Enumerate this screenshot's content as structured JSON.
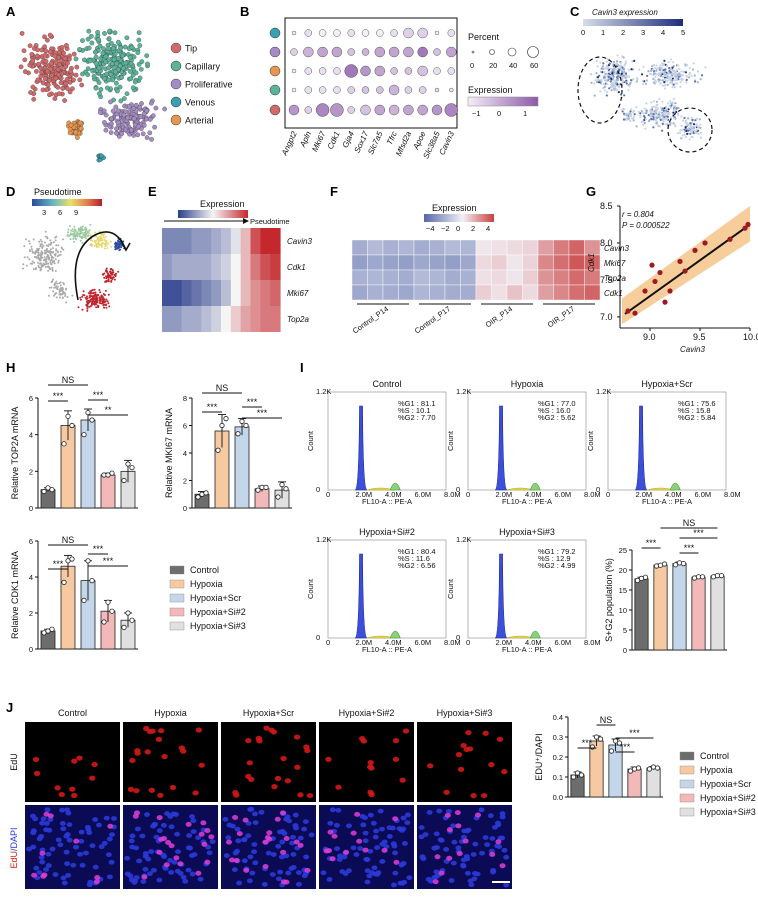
{
  "panels": {
    "A": "A",
    "B": "B",
    "C": "C",
    "D": "D",
    "E": "E",
    "F": "F",
    "G": "G",
    "H": "H",
    "I": "I",
    "J": "J"
  },
  "A": {
    "legend": [
      {
        "label": "Tip",
        "color": "#d16a6a"
      },
      {
        "label": "Capillary",
        "color": "#5bb39a"
      },
      {
        "label": "Proliferative",
        "color": "#a58cc4"
      },
      {
        "label": "Venous",
        "color": "#3a9fb0"
      },
      {
        "label": "Arterial",
        "color": "#e8964e"
      }
    ]
  },
  "B": {
    "genes": [
      "Angpt2",
      "Apln",
      "Mki67",
      "Cdk1",
      "Gja4",
      "Sox17",
      "Slc7a5",
      "Tfrc",
      "Mfsd2a",
      "Apoe",
      "Slc38a5",
      "Cavin3"
    ],
    "row_colors": [
      "#3a9fb0",
      "#a58cc4",
      "#e8964e",
      "#5bb39a",
      "#d16a6a"
    ],
    "percent_title": "Percent",
    "percent_ticks": [
      "0",
      "20",
      "40",
      "60"
    ],
    "expression_title": "Expression",
    "expression_ticks": [
      "−1",
      "0",
      "1"
    ]
  },
  "C": {
    "title": "Cavin3 expression",
    "ticks": [
      "0",
      "1",
      "2",
      "3",
      "4",
      "5"
    ]
  },
  "D": {
    "title": "Pseudotime",
    "ticks": [
      "3",
      "6",
      "9"
    ]
  },
  "E": {
    "title": "Expression",
    "axis": "Pseudotime",
    "genes": [
      "Cavin3",
      "Cdk1",
      "Mki67",
      "Top2a"
    ]
  },
  "F": {
    "title": "Expression",
    "ticks": [
      "−4",
      "−2",
      "0",
      "2",
      "4"
    ],
    "genes": [
      "Cavin3",
      "Mki67",
      "Top2a",
      "Cdk1"
    ],
    "groups": [
      "Control_P14",
      "Control_P17",
      "OIR_P14",
      "OIR_P17"
    ]
  },
  "G": {
    "r_text": "r = 0.804",
    "p_text": "P = 0.000522",
    "xlabel": "Cavin3",
    "ylabel": "Cdk1",
    "xticks": [
      "9.0",
      "9.5",
      "10.0"
    ],
    "yticks": [
      "7.0",
      "7.5",
      "8.0",
      "8.5"
    ]
  },
  "legend_groups": [
    {
      "label": "Control",
      "color": "#6d6d6d"
    },
    {
      "label": "Hypoxia",
      "color": "#f6c9a0"
    },
    {
      "label": "Hypoxia+Scr",
      "color": "#c4d6ea"
    },
    {
      "label": "Hypoxia+Si#2",
      "color": "#f3b8b8"
    },
    {
      "label": "Hypoxia+Si#3",
      "color": "#e0e0e0"
    }
  ],
  "H": {
    "top2a_ylabel": "Relative TOP2A mRNA",
    "mki67_ylabel": "Relative MKI67 mRNA",
    "cdk1_ylabel": "Relative CDK1 mRNA",
    "sig": {
      "star3": "***",
      "star2": "**",
      "ns": "NS"
    },
    "top2a_ticks": [
      "0",
      "2",
      "4",
      "6"
    ],
    "mki67_ticks": [
      "0",
      "2",
      "4",
      "6",
      "8"
    ],
    "cdk1_ticks": [
      "0",
      "2",
      "4",
      "6"
    ]
  },
  "I": {
    "plots": [
      {
        "title": "Control",
        "g1": "%G1 : 81.1",
        "s": "%S : 10.1",
        "g2": "%G2 : 7.70"
      },
      {
        "title": "Hypoxia",
        "g1": "%G1 : 77.0",
        "s": "%S : 16.0",
        "g2": "%G2 : 5.62"
      },
      {
        "title": "Hypoxia+Scr",
        "g1": "%G1 : 75.6",
        "s": "%S : 15.8",
        "g2": "%G2 : 5.84"
      },
      {
        "title": "Hypoxia+Si#2",
        "g1": "%G1 : 80.4",
        "s": "%S : 11.6",
        "g2": "%G2 : 6.56"
      },
      {
        "title": "Hypoxia+Si#3",
        "g1": "%G1 : 79.2",
        "s": "%S : 12.9",
        "g2": "%G2 : 4.99"
      }
    ],
    "xaxis": "FL10-A :: PE-A",
    "yaxis": "Count",
    "xticks": [
      "0",
      "2.0M",
      "4.0M",
      "6.0M",
      "8.0M"
    ],
    "yticks": [
      "0",
      "",
      "",
      "",
      "1.2K"
    ],
    "bar_ylabel": "S+G2 population (%)",
    "bar_ticks": [
      "0",
      "5",
      "10",
      "15",
      "20",
      "25"
    ]
  },
  "J": {
    "columns": [
      "Control",
      "Hypoxia",
      "Hypoxia+Scr",
      "Hypoxia+Si#2",
      "Hypoxia+Si#3"
    ],
    "row1": "EdU",
    "row2_a": "EdU",
    "row2_b": "/DAPI",
    "bar_ylabel": "EDU⁺/DAPI",
    "bar_ticks": [
      "0.0",
      "0.1",
      "0.2",
      "0.3",
      "0.4"
    ]
  },
  "chart_data": [
    {
      "type": "bar",
      "id": "H-TOP2A",
      "categories": [
        "Control",
        "Hypoxia",
        "Hypoxia+Scr",
        "Hypoxia+Si#2",
        "Hypoxia+Si#3"
      ],
      "values": [
        1.0,
        4.5,
        4.8,
        1.8,
        2.0
      ],
      "errors": [
        0.1,
        0.8,
        0.6,
        0.1,
        0.6
      ],
      "points": [
        [
          0.9,
          1.1,
          1.0
        ],
        [
          3.5,
          5.0,
          4.5
        ],
        [
          4.0,
          5.2,
          4.8
        ],
        [
          1.8,
          1.8,
          1.9
        ],
        [
          1.5,
          2.4,
          2.2
        ]
      ],
      "ylabel": "Relative TOP2A mRNA",
      "ylim": [
        0,
        6
      ]
    },
    {
      "type": "bar",
      "id": "H-MKI67",
      "categories": [
        "Control",
        "Hypoxia",
        "Hypoxia+Scr",
        "Hypoxia+Si#2",
        "Hypoxia+Si#3"
      ],
      "values": [
        1.0,
        5.6,
        5.9,
        1.4,
        1.3
      ],
      "errors": [
        0.2,
        1.2,
        0.6,
        0.2,
        0.6
      ],
      "points": [
        [
          0.8,
          1.0,
          1.1
        ],
        [
          4.2,
          6.0,
          6.5
        ],
        [
          5.4,
          6.3,
          6.0
        ],
        [
          1.3,
          1.5,
          1.5
        ],
        [
          0.8,
          1.7,
          1.4
        ]
      ],
      "ylabel": "Relative MKI67 mRNA",
      "ylim": [
        0,
        8
      ]
    },
    {
      "type": "bar",
      "id": "H-CDK1",
      "categories": [
        "Control",
        "Hypoxia",
        "Hypoxia+Scr",
        "Hypoxia+Si#2",
        "Hypoxia+Si#3"
      ],
      "values": [
        1.0,
        4.6,
        3.8,
        2.1,
        1.6
      ],
      "errors": [
        0.1,
        0.6,
        1.1,
        0.6,
        0.4
      ],
      "points": [
        [
          0.9,
          1.0,
          1.1
        ],
        [
          3.7,
          4.9,
          5.0
        ],
        [
          2.7,
          4.9,
          3.8
        ],
        [
          1.5,
          2.6,
          2.1
        ],
        [
          1.2,
          2.0,
          1.6
        ]
      ],
      "ylabel": "Relative CDK1 mRNA",
      "ylim": [
        0,
        6
      ]
    },
    {
      "type": "bar",
      "id": "I-SG2",
      "categories": [
        "Control",
        "Hypoxia",
        "Hypoxia+Scr",
        "Hypoxia+Si#2",
        "Hypoxia+Si#3"
      ],
      "values": [
        17.8,
        21.2,
        21.6,
        18.2,
        18.5
      ],
      "errors": [
        0.4,
        0.3,
        0.4,
        0.3,
        0.3
      ],
      "points": [
        [
          17.4,
          17.9,
          18.2
        ],
        [
          21.0,
          21.2,
          21.5
        ],
        [
          21.3,
          21.8,
          21.6
        ],
        [
          18.0,
          18.3,
          18.3
        ],
        [
          18.3,
          18.6,
          18.6
        ]
      ],
      "ylabel": "S+G2 population (%)",
      "ylim": [
        0,
        25
      ]
    },
    {
      "type": "bar",
      "id": "J-EDU",
      "categories": [
        "Control",
        "Hypoxia",
        "Hypoxia+Scr",
        "Hypoxia+Si#2",
        "Hypoxia+Si#3"
      ],
      "values": [
        0.11,
        0.28,
        0.26,
        0.14,
        0.145
      ],
      "errors": [
        0.015,
        0.025,
        0.03,
        0.01,
        0.008
      ],
      "points": [
        [
          0.1,
          0.12,
          0.11
        ],
        [
          0.25,
          0.3,
          0.29
        ],
        [
          0.23,
          0.28,
          0.27
        ],
        [
          0.13,
          0.14,
          0.145
        ],
        [
          0.14,
          0.15,
          0.145
        ]
      ],
      "ylabel": "EDU⁺/DAPI",
      "ylim": [
        0,
        0.4
      ]
    },
    {
      "type": "scatter",
      "id": "G",
      "x": [
        8.78,
        8.85,
        8.95,
        9.02,
        9.05,
        9.1,
        9.15,
        9.2,
        9.3,
        9.35,
        9.45,
        9.55,
        9.8,
        9.95,
        9.98
      ],
      "y": [
        7.08,
        7.05,
        7.35,
        7.7,
        7.48,
        7.6,
        7.2,
        7.35,
        7.75,
        7.62,
        7.9,
        8.0,
        8.05,
        8.2,
        8.25
      ],
      "xlabel": "Cavin3",
      "ylabel": "Cdk1",
      "xlim": [
        8.7,
        10.0
      ],
      "ylim": [
        6.85,
        8.5
      ]
    }
  ]
}
